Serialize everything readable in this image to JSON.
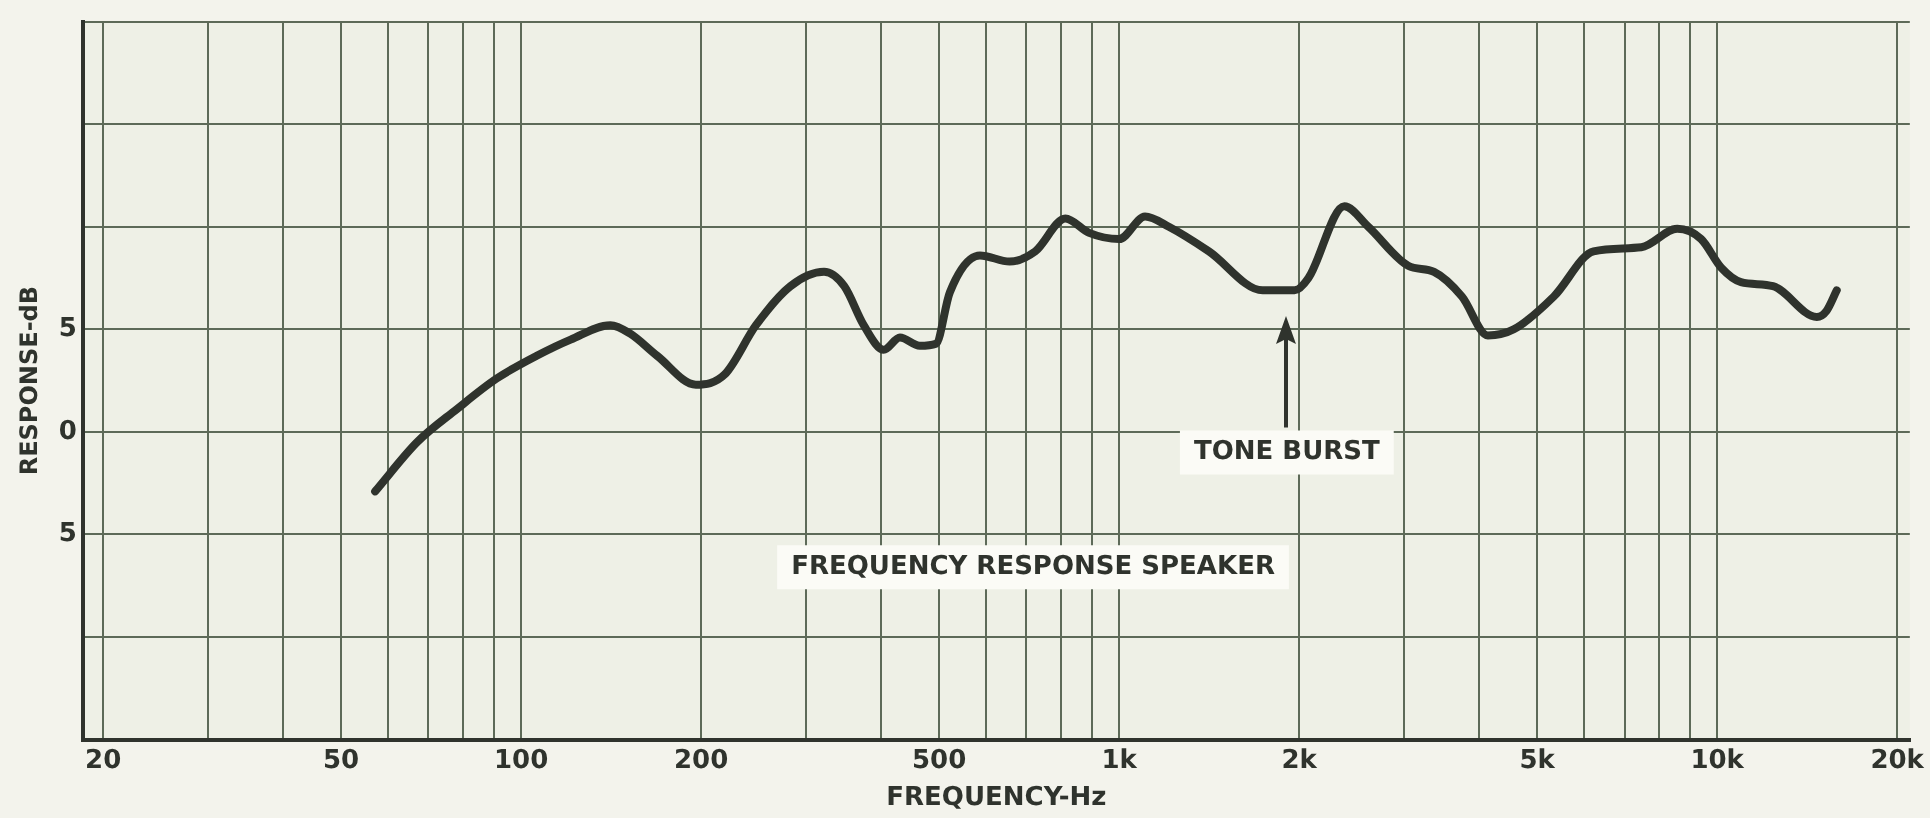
{
  "chart_data": {
    "type": "line",
    "xlabel": "FREQUENCY-Hz",
    "ylabel": "RESPONSE-dB",
    "log": "x",
    "xlim": [
      18.5,
      21000
    ],
    "xticks": [
      20,
      {
        "value": 30,
        "label": null
      },
      {
        "value": 40,
        "label": null
      },
      50,
      {
        "value": 60,
        "label": null
      },
      {
        "value": 70,
        "label": null
      },
      {
        "value": 80,
        "label": null
      },
      {
        "value": 90,
        "label": null
      },
      100,
      200,
      {
        "value": 300,
        "label": null
      },
      {
        "value": 400,
        "label": null
      },
      500,
      {
        "value": 600,
        "label": null
      },
      {
        "value": 700,
        "label": null
      },
      {
        "value": 800,
        "label": null
      },
      {
        "value": 900,
        "label": null
      },
      {
        "value": 1000,
        "label": "1k"
      },
      {
        "value": 2000,
        "label": "2k"
      },
      {
        "value": 3000,
        "label": null
      },
      {
        "value": 4000,
        "label": null
      },
      {
        "value": 5000,
        "label": "5k"
      },
      {
        "value": 6000,
        "label": null
      },
      {
        "value": 7000,
        "label": null
      },
      {
        "value": 8000,
        "label": null
      },
      {
        "value": 9000,
        "label": null
      },
      {
        "value": 10000,
        "label": "10k"
      },
      {
        "value": 20000,
        "label": "20k"
      }
    ],
    "ylim": [
      -15,
      20
    ],
    "yticks": [
      {
        "value": -15,
        "label": null
      },
      {
        "value": -10,
        "label": null
      },
      {
        "value": -5,
        "label": "5"
      },
      0,
      5,
      {
        "value": 10,
        "label": null
      },
      {
        "value": 15,
        "label": null
      },
      {
        "value": 20,
        "label": null
      }
    ],
    "grid": true,
    "legend": false,
    "marker": "none",
    "line_style": "solid",
    "series": [
      {
        "color": "#2f332d",
        "x": [
          57,
          67,
          78,
          91,
          106,
          121,
          141,
          152,
          169,
          196,
          219,
          247,
          282,
          321,
          347,
          374,
          404,
          430,
          464,
          494,
          521,
          585,
          656,
          724,
          813,
          891,
          1000,
          1105,
          1211,
          1413,
          1738,
          1965,
          2073,
          2380,
          2610,
          3043,
          3362,
          3743,
          4137,
          4571,
          5333,
          6213,
          7470,
          8576,
          9401,
          10160,
          10960,
          12400,
          14680,
          15240,
          15850
        ],
        "values": [
          -2.9,
          -0.5,
          1.1,
          2.6,
          3.7,
          4.5,
          5.2,
          4.8,
          3.7,
          2.3,
          2.8,
          5.2,
          7.1,
          7.8,
          7.1,
          5.2,
          4.0,
          4.6,
          4.2,
          4.3,
          6.8,
          8.6,
          8.3,
          8.8,
          10.4,
          9.7,
          9.4,
          10.5,
          10.0,
          8.8,
          6.9,
          6.9,
          7.5,
          11.0,
          10.0,
          8.1,
          7.8,
          6.6,
          4.7,
          5.0,
          6.6,
          8.8,
          9.0,
          9.9,
          9.4,
          8.0,
          7.3,
          7.1,
          5.6,
          5.9,
          6.9
        ]
      }
    ],
    "annotations": [
      "TONE BURST",
      "FREQUENCY RESPONSE SPEAKER"
    ]
  }
}
